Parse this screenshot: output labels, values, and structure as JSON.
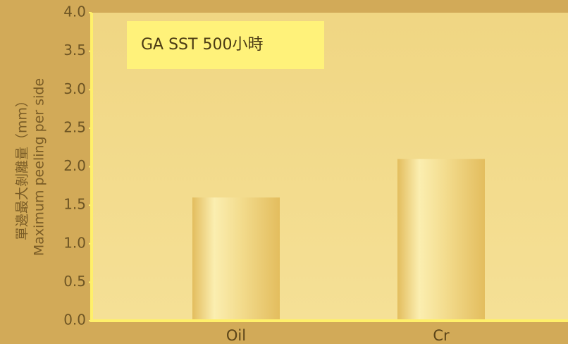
{
  "chart_data": {
    "type": "bar",
    "annotation": "GA SST 500小時",
    "ylabel": [
      "單邊最大剝離量（mm）",
      "Maximum peeling per side"
    ],
    "categories": [
      "Oil",
      "Cr"
    ],
    "values": [
      1.6,
      2.1
    ],
    "color": "#e3bd5e",
    "ylim": [
      0,
      4
    ],
    "yticks": [
      {
        "value": 0,
        "label": "0.0"
      },
      {
        "value": 0.5,
        "label": "0.5"
      },
      {
        "value": 1,
        "label": "1.0"
      },
      {
        "value": 1.5,
        "label": "1.5"
      },
      {
        "value": 2,
        "label": "2.0"
      },
      {
        "value": 2.5,
        "label": "2.5"
      },
      {
        "value": 3,
        "label": "3.0"
      },
      {
        "value": 3.5,
        "label": "3.5"
      },
      {
        "value": 4,
        "label": "4.0"
      }
    ]
  }
}
